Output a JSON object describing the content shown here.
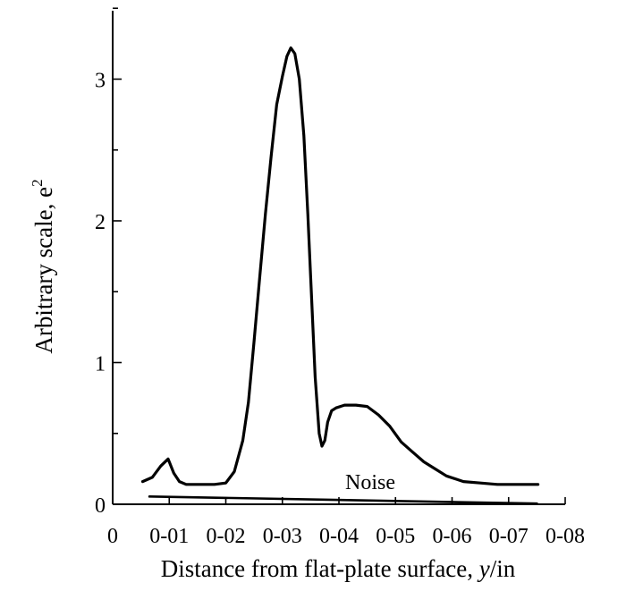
{
  "chart_data": {
    "type": "line",
    "xlabel_main": "Distance from flat-plate surface, ",
    "xlabel_var": "y",
    "xlabel_unit": "/in",
    "ylabel_main": "Arbitrary scale, e",
    "ylabel_sup": "2",
    "xlim": [
      0,
      0.08
    ],
    "ylim": [
      0,
      3.5
    ],
    "x_ticks": [
      0,
      0.01,
      0.02,
      0.03,
      0.04,
      0.05,
      0.06,
      0.07,
      0.08
    ],
    "x_tick_labels": [
      "0",
      "0-01",
      "0-02",
      "0-03",
      "0-04",
      "0-05",
      "0-06",
      "0-07",
      "0-08"
    ],
    "y_ticks": [
      0,
      1,
      2,
      3
    ],
    "y_tick_labels": [
      "0",
      "1",
      "2",
      "3"
    ],
    "annotation": {
      "text": "Noise"
    },
    "series": [
      {
        "x": [
          0.0053,
          0.007,
          0.0085,
          0.0098,
          0.0108,
          0.0118,
          0.013,
          0.015,
          0.018,
          0.02,
          0.0215,
          0.023,
          0.024,
          0.025,
          0.026,
          0.027,
          0.028,
          0.029,
          0.03,
          0.0308,
          0.0315,
          0.0322,
          0.033,
          0.0338,
          0.0345,
          0.035,
          0.0358,
          0.0365,
          0.037,
          0.0375,
          0.038,
          0.0387,
          0.0395,
          0.041,
          0.043,
          0.045,
          0.047,
          0.049,
          0.051,
          0.053,
          0.055,
          0.057,
          0.059,
          0.062,
          0.065,
          0.068,
          0.07,
          0.072,
          0.0752
        ],
        "y": [
          0.16,
          0.19,
          0.27,
          0.32,
          0.22,
          0.16,
          0.14,
          0.14,
          0.14,
          0.15,
          0.23,
          0.45,
          0.72,
          1.15,
          1.6,
          2.05,
          2.45,
          2.82,
          3.02,
          3.16,
          3.22,
          3.18,
          3.0,
          2.6,
          2.05,
          1.6,
          0.9,
          0.5,
          0.41,
          0.45,
          0.58,
          0.66,
          0.68,
          0.7,
          0.7,
          0.69,
          0.63,
          0.55,
          0.44,
          0.37,
          0.3,
          0.25,
          0.2,
          0.16,
          0.15,
          0.14,
          0.14,
          0.14,
          0.14
        ]
      },
      {
        "x": [
          0.0065,
          0.075
        ],
        "y": [
          0.055,
          0.005
        ]
      }
    ]
  }
}
